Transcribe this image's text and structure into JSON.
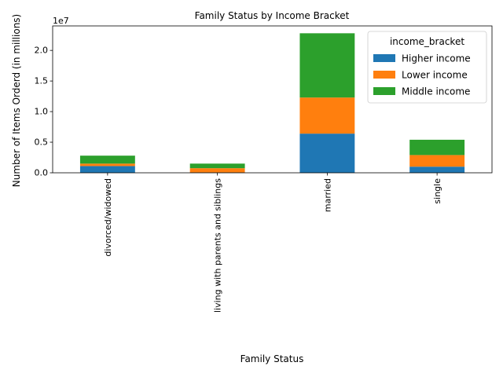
{
  "chart_data": {
    "type": "bar",
    "stacked": true,
    "title": "Family Status by Income Bracket",
    "xlabel": "Family Status",
    "ylabel": "Number of Items Orderd (in millions)",
    "y_offset_text": "1e7",
    "categories": [
      "divorced/widowed",
      "living with parents and siblings",
      "married",
      "single"
    ],
    "series": [
      {
        "name": "Higher income",
        "color": "#1f77b4",
        "values": [
          1100000,
          50000,
          6400000,
          1000000
        ]
      },
      {
        "name": "Lower income",
        "color": "#ff7f0e",
        "values": [
          400000,
          700000,
          5900000,
          1900000
        ]
      },
      {
        "name": "Middle income",
        "color": "#2ca02c",
        "values": [
          1300000,
          750000,
          10500000,
          2500000
        ]
      }
    ],
    "ylim": [
      0,
      24000000
    ],
    "yticks": [
      0,
      5000000,
      10000000,
      15000000,
      20000000
    ],
    "ytick_labels": [
      "0.0",
      "0.5",
      "1.0",
      "1.5",
      "2.0"
    ],
    "legend": {
      "title": "income_bracket",
      "placement": "top-right"
    },
    "grid": false
  }
}
